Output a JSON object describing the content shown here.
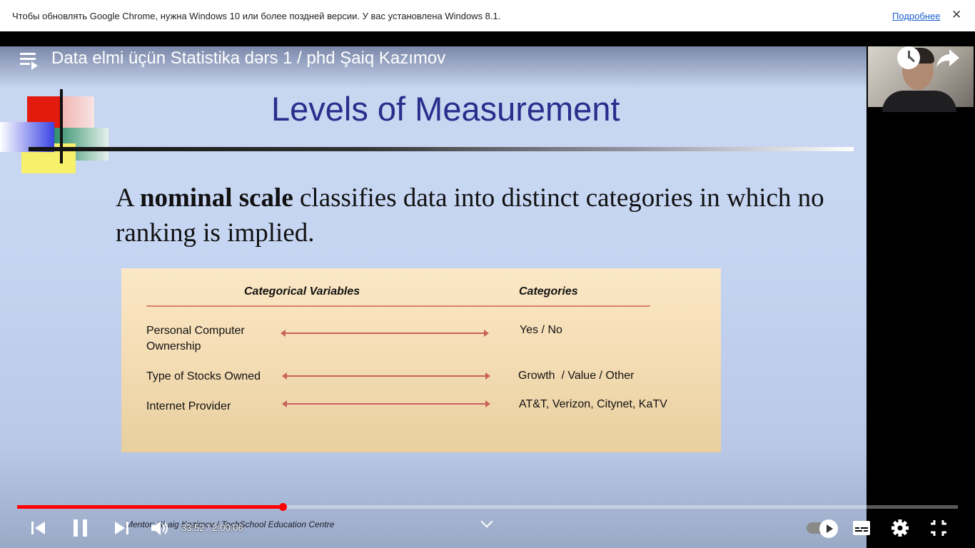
{
  "infobar": {
    "message": "Чтобы обновлять Google Chrome, нужна Windows 10 или более поздней версии. У вас установлена Windows 8.1.",
    "more_link": "Подробнее",
    "close": "✕"
  },
  "player": {
    "title": "Data elmi üçün Statistika dərs 1 / phd Şaiq Kazımov",
    "time_current": "33:52",
    "time_separator": " / ",
    "time_total": "2:00:06",
    "progress_fraction": 0.282,
    "colors": {
      "progress": "#ff0000",
      "accent_text": "#2a2d8c"
    }
  },
  "slide": {
    "title": "Levels of Measurement",
    "body_prefix": "A ",
    "body_bold": "nominal scale",
    "body_suffix": " classifies data into distinct categories in which no ranking is implied.",
    "table": {
      "col1_header": "Categorical Variables",
      "col2_header": "Categories",
      "rows": [
        {
          "variable": "Personal Computer Ownership",
          "categories": "Yes / No"
        },
        {
          "variable": "Type of Stocks Owned",
          "categories": "Growth  / Value / Other"
        },
        {
          "variable": "Internet Provider",
          "categories": "AT&T, Verizon, Citynet, KaTV"
        }
      ]
    },
    "footer": "Mentor: Shaig Kazimov / TechSchool Education Centre"
  },
  "icons": {
    "playlist": "playlist-icon",
    "watch_later": "clock-icon",
    "share": "share-icon",
    "prev": "skip-previous-icon",
    "pause": "pause-icon",
    "next": "skip-next-icon",
    "volume": "volume-icon",
    "chevron": "chevron-down-icon",
    "autoplay": "autoplay-toggle-icon",
    "subtitles": "subtitles-icon",
    "settings": "gear-icon",
    "exit_fullscreen": "exit-fullscreen-icon"
  }
}
